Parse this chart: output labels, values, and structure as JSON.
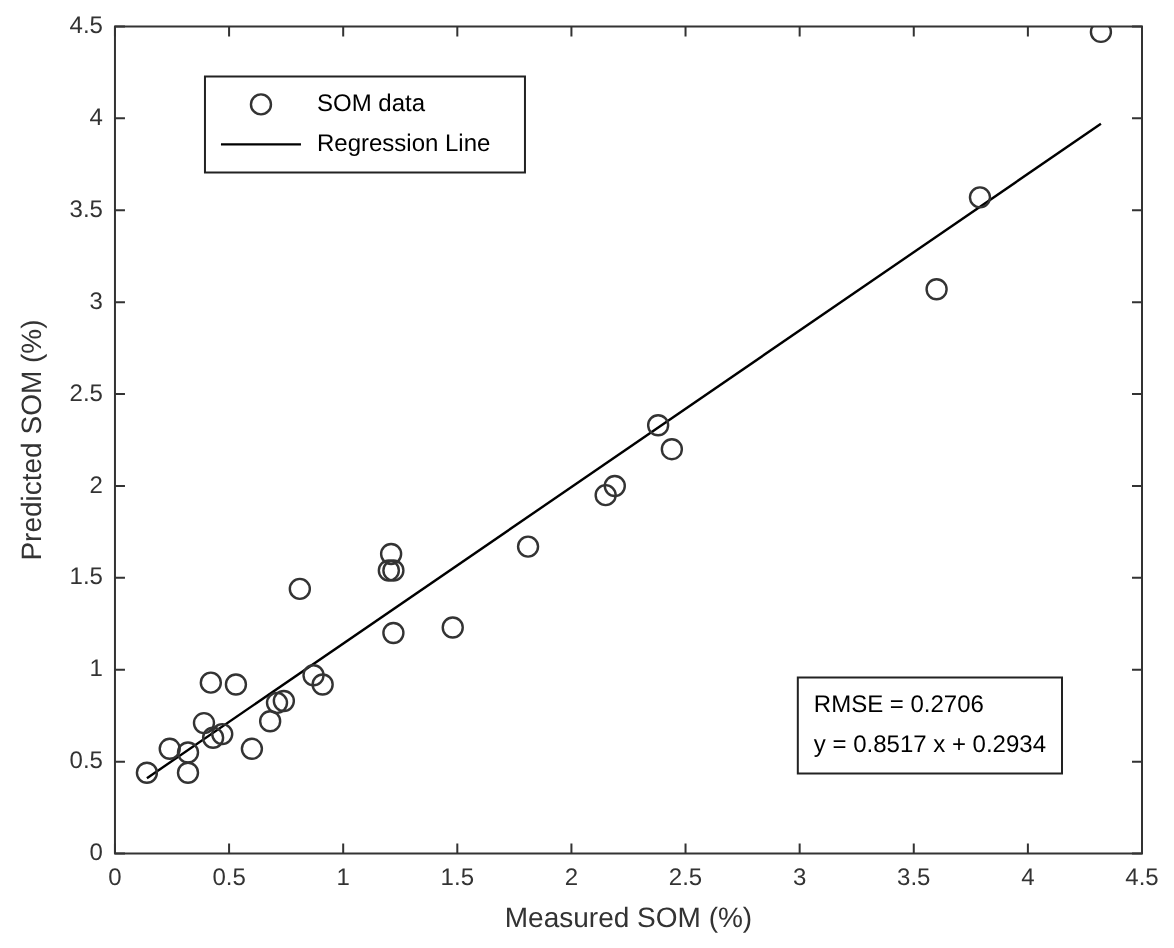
{
  "chart_data": {
    "type": "scatter",
    "xlabel": "Measured SOM (%)",
    "ylabel": "Predicted SOM (%)",
    "xlim": [
      0,
      4.5
    ],
    "xticks": [
      0,
      0.5,
      1,
      1.5,
      2,
      2.5,
      3,
      3.5,
      4,
      4.5
    ],
    "ylim": [
      0,
      4.5
    ],
    "yticks": [
      0,
      0.5,
      1,
      1.5,
      2,
      2.5,
      3,
      3.5,
      4,
      4.5
    ],
    "grid": false,
    "legend": "top left",
    "series": [
      {
        "name": "SOM data",
        "type": "scatter",
        "marker": "circle",
        "color": "#333333",
        "x": [
          0.14,
          0.24,
          0.32,
          0.32,
          0.39,
          0.42,
          0.43,
          0.47,
          0.53,
          0.6,
          0.68,
          0.71,
          0.74,
          0.81,
          0.87,
          0.91,
          1.2,
          1.21,
          1.22,
          1.22,
          1.48,
          1.81,
          2.15,
          2.19,
          2.38,
          2.44,
          3.6,
          3.79,
          4.32
        ],
        "values": [
          0.44,
          0.57,
          0.55,
          0.44,
          0.71,
          0.93,
          0.63,
          0.65,
          0.92,
          0.57,
          0.72,
          0.82,
          0.83,
          1.44,
          0.97,
          0.92,
          1.54,
          1.63,
          1.54,
          1.2,
          1.23,
          1.67,
          1.95,
          2.0,
          2.33,
          2.2,
          3.07,
          3.57,
          4.47
        ]
      },
      {
        "name": "Regression Line",
        "type": "line",
        "marker": "none",
        "color": "#000000",
        "x": [
          0.14,
          4.32
        ],
        "values": [
          0.41,
          3.97
        ]
      }
    ],
    "annotations": [
      "RMSE = 0.2706",
      "y = 0.8517 x + 0.2934"
    ]
  }
}
